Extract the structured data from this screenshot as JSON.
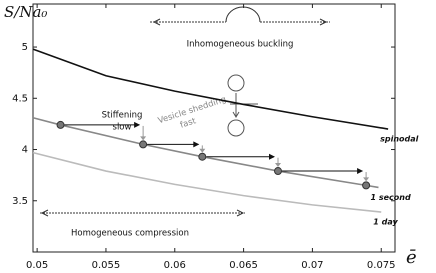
{
  "chart_data": {
    "type": "line",
    "ylabel": "S/Na₀",
    "xlabel": "ē",
    "xlim": [
      0.0497,
      0.076
    ],
    "ylim": [
      3.0,
      5.42
    ],
    "xticks": [
      0.05,
      0.055,
      0.06,
      0.065,
      0.07,
      0.075
    ],
    "yticks": [
      3.5,
      4,
      4.5,
      5
    ],
    "series": [
      {
        "name": "spinodal",
        "color": "#111111",
        "x": [
          0.0497,
          0.055,
          0.06,
          0.065,
          0.07,
          0.0755
        ],
        "values": [
          4.98,
          4.72,
          4.57,
          4.44,
          4.32,
          4.2
        ]
      },
      {
        "name": "1 second",
        "color": "#888888",
        "x": [
          0.0497,
          0.0517,
          0.0577,
          0.062,
          0.0675,
          0.0739,
          0.0748
        ],
        "values": [
          4.31,
          4.24,
          4.05,
          3.93,
          3.79,
          3.65,
          3.63
        ],
        "markers_x": [
          0.0517,
          0.0577,
          0.062,
          0.0675,
          0.0739
        ],
        "markers_y": [
          4.24,
          4.05,
          3.93,
          3.79,
          3.65
        ]
      },
      {
        "name": "1 day",
        "color": "#bbbbbb",
        "x": [
          0.0497,
          0.055,
          0.06,
          0.065,
          0.07,
          0.075
        ],
        "values": [
          3.97,
          3.79,
          3.66,
          3.55,
          3.46,
          3.39
        ]
      }
    ],
    "annotations": [
      "Inhomogeneous buckling",
      "Stiffening",
      "slow",
      "Vesicle shedding",
      "fast",
      "Homogeneous compression"
    ]
  }
}
